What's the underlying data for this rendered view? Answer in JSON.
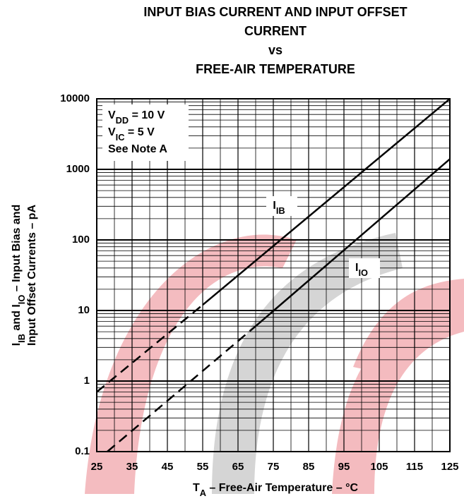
{
  "chart_data": {
    "type": "line",
    "title": [
      "INPUT BIAS CURRENT AND INPUT OFFSET",
      "CURRENT",
      "vs",
      "FREE-AIR TEMPERATURE"
    ],
    "xlabel": [
      {
        "text": "T"
      },
      {
        "text": "A",
        "sub": true
      },
      {
        "text": " – Free-Air Temperature – °C"
      }
    ],
    "ylabel": [
      [
        {
          "text": "I"
        },
        {
          "text": "IB",
          "sub": true
        },
        {
          "text": " and I"
        },
        {
          "text": "IO",
          "sub": true
        },
        {
          "text": " – Input Bias and"
        }
      ],
      [
        {
          "text": "Input Offset Currents – pA"
        }
      ]
    ],
    "note": [
      [
        {
          "text": "V"
        },
        {
          "text": "DD",
          "sub": true
        },
        {
          "text": " = 10 V"
        }
      ],
      [
        {
          "text": "V"
        },
        {
          "text": "IC",
          "sub": true
        },
        {
          "text": " = 5 V"
        }
      ],
      [
        {
          "text": "See Note A"
        }
      ]
    ],
    "xlim": [
      25,
      125
    ],
    "xticks": [
      25,
      35,
      45,
      55,
      65,
      75,
      85,
      95,
      105,
      115,
      125
    ],
    "ylim": [
      0.1,
      10000
    ],
    "yticks": [
      0.1,
      1,
      10,
      100,
      1000,
      10000
    ],
    "ylog": true,
    "grid": true,
    "minor_grid": true,
    "series": [
      {
        "name_parts": [
          "I",
          "IB"
        ],
        "color": "#000000",
        "x": [
          25,
          55,
          125
        ],
        "values": [
          0.7,
          12,
          10000
        ],
        "segment_styles": [
          "dashed",
          "solid"
        ]
      },
      {
        "name_parts": [
          "I",
          "IO"
        ],
        "color": "#000000",
        "x": [
          28,
          70,
          125
        ],
        "values": [
          0.1,
          6,
          1400
        ],
        "segment_styles": [
          "dashed",
          "solid"
        ]
      }
    ]
  }
}
